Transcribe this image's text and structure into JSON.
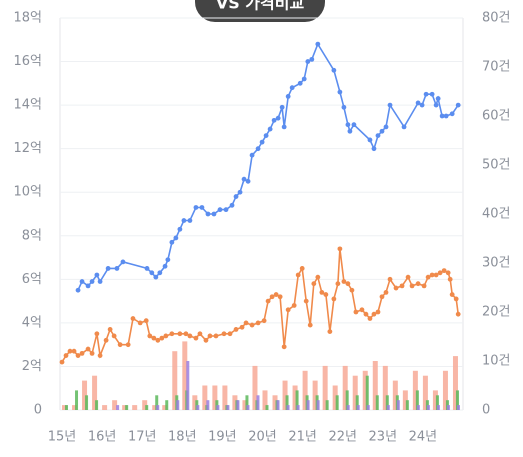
{
  "chart_data": {
    "type": "line",
    "title": "VS 가격비교",
    "xlim": [
      15,
      25
    ],
    "xticks": [
      {
        "value": 15,
        "label": "15년"
      },
      {
        "value": 16,
        "label": "16년"
      },
      {
        "value": 17,
        "label": "17년"
      },
      {
        "value": 18,
        "label": "18년"
      },
      {
        "value": 19,
        "label": "19년"
      },
      {
        "value": 20,
        "label": "20년"
      },
      {
        "value": 21,
        "label": "21년"
      },
      {
        "value": 22,
        "label": "22년"
      },
      {
        "value": 23,
        "label": "23년"
      },
      {
        "value": 24,
        "label": "24년"
      }
    ],
    "ylim": [
      0,
      18
    ],
    "yticks": [
      0,
      {
        "value": 2,
        "label": "2억"
      },
      {
        "value": 4,
        "label": "4억"
      },
      {
        "value": 6,
        "label": "6억"
      },
      {
        "value": 8,
        "label": "8억"
      },
      {
        "value": 10,
        "label": "10억"
      },
      {
        "value": 12,
        "label": "12억"
      },
      {
        "value": 14,
        "label": "14억"
      },
      {
        "value": 16,
        "label": "16억"
      },
      {
        "value": 18,
        "label": "18억"
      }
    ],
    "y2lim": [
      0,
      80
    ],
    "y2ticks": [
      {
        "value": 0,
        "label": "0"
      },
      {
        "value": 10,
        "label": "10건"
      },
      {
        "value": 20,
        "label": "20건"
      },
      {
        "value": 30,
        "label": "30건"
      },
      {
        "value": 40,
        "label": "40건"
      },
      {
        "value": 50,
        "label": "50건"
      },
      {
        "value": 60,
        "label": "60건"
      },
      {
        "value": 70,
        "label": "70건"
      },
      {
        "value": 80,
        "label": "80건"
      }
    ],
    "grid": true,
    "series": [
      {
        "kind": "bar",
        "axis": "y2",
        "color": "#f7a996",
        "x": [
          15.0,
          15.25,
          15.5,
          15.75,
          16.0,
          16.25,
          16.5,
          16.75,
          17.0,
          17.25,
          17.5,
          17.75,
          18.0,
          18.25,
          18.5,
          18.75,
          19.0,
          19.25,
          19.5,
          19.75,
          20.0,
          20.25,
          20.5,
          20.75,
          21.0,
          21.25,
          21.5,
          21.75,
          22.0,
          22.25,
          22.5,
          22.75,
          23.0,
          23.25,
          23.5,
          23.75,
          24.0,
          24.25,
          24.5,
          24.75
        ],
        "values": [
          1,
          1,
          6,
          7,
          1,
          2,
          1,
          1,
          2,
          1,
          1,
          12,
          14,
          3,
          5,
          5,
          5,
          3,
          2,
          9,
          4,
          3,
          6,
          5,
          8,
          6,
          9,
          5,
          9,
          7,
          8,
          10,
          9,
          6,
          4,
          8,
          7,
          4,
          8,
          11
        ]
      },
      {
        "kind": "bar",
        "axis": "y2",
        "color": "#5cb85c",
        "x": [
          15.0,
          15.25,
          15.5,
          15.75,
          16.0,
          16.25,
          16.5,
          16.75,
          17.0,
          17.25,
          17.5,
          17.75,
          18.0,
          18.25,
          18.5,
          18.75,
          19.0,
          19.25,
          19.5,
          19.75,
          20.0,
          20.25,
          20.5,
          20.75,
          21.0,
          21.25,
          21.5,
          21.75,
          22.0,
          22.25,
          22.5,
          22.75,
          23.0,
          23.25,
          23.5,
          23.75,
          24.0,
          24.25,
          24.5,
          24.75
        ],
        "values": [
          1,
          4,
          3,
          2,
          0,
          0,
          1,
          0,
          1,
          3,
          2,
          3,
          4,
          2,
          1,
          2,
          1,
          2,
          3,
          2,
          1,
          2,
          3,
          4,
          3,
          3,
          2,
          3,
          4,
          3,
          7,
          3,
          3,
          3,
          2,
          4,
          2,
          3,
          2,
          4
        ]
      },
      {
        "kind": "bar",
        "axis": "y2",
        "color": "#9b7fe0",
        "x": [
          15.0,
          15.25,
          15.5,
          15.75,
          16.0,
          16.25,
          16.5,
          16.75,
          17.0,
          17.25,
          17.5,
          17.75,
          18.0,
          18.25,
          18.5,
          18.75,
          19.0,
          19.25,
          19.5,
          19.75,
          20.0,
          20.25,
          20.5,
          20.75,
          21.0,
          21.25,
          21.5,
          21.75,
          22.0,
          22.25,
          22.5,
          22.75,
          23.0,
          23.25,
          23.5,
          23.75,
          24.0,
          24.25,
          24.5,
          24.75
        ],
        "values": [
          0,
          0,
          0,
          0,
          0,
          1,
          0,
          0,
          0,
          1,
          0,
          2,
          10,
          1,
          2,
          1,
          1,
          2,
          1,
          3,
          0,
          2,
          1,
          1,
          2,
          2,
          0,
          0,
          1,
          1,
          1,
          0,
          1,
          2,
          0,
          1,
          1,
          1,
          1,
          1
        ]
      },
      {
        "kind": "line",
        "color": "#f08a4b",
        "x": [
          15.0,
          15.1,
          15.2,
          15.3,
          15.4,
          15.5,
          15.65,
          15.75,
          15.87,
          15.95,
          16.1,
          16.2,
          16.3,
          16.45,
          16.65,
          16.77,
          16.95,
          17.1,
          17.19,
          17.29,
          17.39,
          17.49,
          17.59,
          17.74,
          17.94,
          18.09,
          18.19,
          18.34,
          18.44,
          18.59,
          18.69,
          18.84,
          19.04,
          19.19,
          19.34,
          19.49,
          19.59,
          19.74,
          19.89,
          20.04,
          20.14,
          20.24,
          20.34,
          20.44,
          20.54,
          20.64,
          20.79,
          20.89,
          20.99,
          21.09,
          21.19,
          21.28,
          21.38,
          21.48,
          21.58,
          21.68,
          21.78,
          21.88,
          21.93,
          22.03,
          22.13,
          22.23,
          22.33,
          22.48,
          22.58,
          22.68,
          22.78,
          22.88,
          22.98,
          23.08,
          23.18,
          23.33,
          23.48,
          23.63,
          23.73,
          23.88,
          24.03,
          24.13,
          24.23,
          24.33,
          24.43,
          24.53,
          24.63,
          24.68,
          24.73,
          24.83,
          24.88
        ],
        "values": [
          2.2,
          2.5,
          2.7,
          2.7,
          2.5,
          2.6,
          2.8,
          2.6,
          3.5,
          2.5,
          3.2,
          3.7,
          3.4,
          3.0,
          3.0,
          4.2,
          4.0,
          4.1,
          3.4,
          3.3,
          3.2,
          3.3,
          3.4,
          3.5,
          3.5,
          3.5,
          3.4,
          3.3,
          3.5,
          3.2,
          3.4,
          3.4,
          3.5,
          3.5,
          3.7,
          3.8,
          4.0,
          3.9,
          4.0,
          4.1,
          5.0,
          5.2,
          5.3,
          5.2,
          2.9,
          4.6,
          4.8,
          6.2,
          6.5,
          5.0,
          3.9,
          5.8,
          6.1,
          5.4,
          5.3,
          3.6,
          5.1,
          5.8,
          7.4,
          5.9,
          5.8,
          5.5,
          4.5,
          4.6,
          4.4,
          4.2,
          4.4,
          4.5,
          5.2,
          5.4,
          6.0,
          5.6,
          5.7,
          6.1,
          5.7,
          5.8,
          5.7,
          6.1,
          6.2,
          6.2,
          6.3,
          6.4,
          6.3,
          6.0,
          5.3,
          5.1,
          4.4
        ]
      },
      {
        "kind": "line",
        "color": "#5b8def",
        "x": [
          15.4,
          15.5,
          15.65,
          15.75,
          15.87,
          15.95,
          16.15,
          16.37,
          16.52,
          17.12,
          17.24,
          17.34,
          17.44,
          17.57,
          17.64,
          17.74,
          17.84,
          17.94,
          18.04,
          18.19,
          18.34,
          18.49,
          18.64,
          18.79,
          18.94,
          19.09,
          19.24,
          19.34,
          19.44,
          19.54,
          19.64,
          19.74,
          19.89,
          19.99,
          20.09,
          20.19,
          20.29,
          20.39,
          20.49,
          20.54,
          20.64,
          20.74,
          20.94,
          21.04,
          21.13,
          21.23,
          21.38,
          21.78,
          21.93,
          22.03,
          22.13,
          22.18,
          22.28,
          22.68,
          22.78,
          22.88,
          22.98,
          23.08,
          23.18,
          23.53,
          23.88,
          23.98,
          24.08,
          24.23,
          24.33,
          24.38,
          24.48,
          24.58,
          24.73,
          24.88
        ],
        "values": [
          5.5,
          5.9,
          5.7,
          5.9,
          6.2,
          5.9,
          6.5,
          6.5,
          6.8,
          6.5,
          6.3,
          6.1,
          6.3,
          6.6,
          6.9,
          7.7,
          7.9,
          8.3,
          8.7,
          8.7,
          9.3,
          9.3,
          9.0,
          9.0,
          9.2,
          9.2,
          9.4,
          9.8,
          10.0,
          10.6,
          10.5,
          11.7,
          12.0,
          12.3,
          12.6,
          12.9,
          13.3,
          13.4,
          13.9,
          13.0,
          14.4,
          14.8,
          15.0,
          15.2,
          16.0,
          16.1,
          16.8,
          15.6,
          14.6,
          13.9,
          13.1,
          12.8,
          13.1,
          12.4,
          12.0,
          12.6,
          12.8,
          13.0,
          14.0,
          13.0,
          14.1,
          14.0,
          14.5,
          14.5,
          14.0,
          14.3,
          13.5,
          13.5,
          13.6,
          14.0
        ]
      }
    ]
  }
}
